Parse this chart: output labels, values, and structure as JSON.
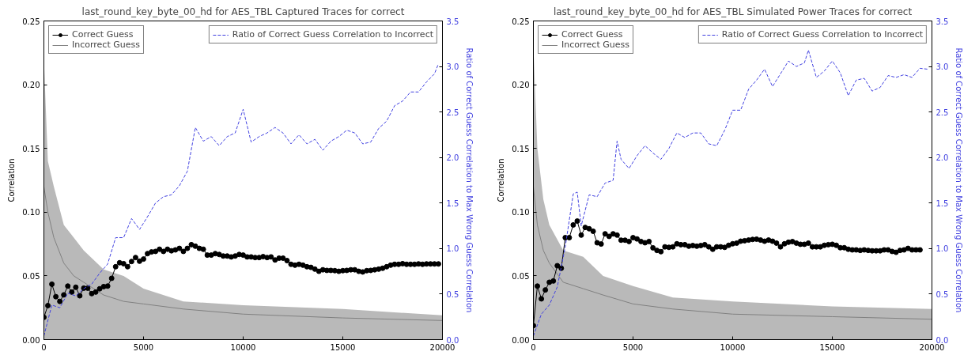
{
  "chart_data": [
    {
      "type": "line",
      "title": "last_round_key_byte_00_hd for AES_TBL Captured Traces for correct",
      "ylabel": "Correlation",
      "y2label": "Ratio of Correct Guess Correlation to Max Wrong Guess Correlation",
      "xlim": [
        0,
        20000
      ],
      "xticks": [
        0,
        5000,
        10000,
        15000,
        20000
      ],
      "ylim": [
        0,
        0.25
      ],
      "yticks": [
        {
          "value": 0,
          "label": "0.00"
        },
        {
          "value": 0.05,
          "label": "0.05"
        },
        {
          "value": 0.1,
          "label": "0.10"
        },
        {
          "value": 0.15,
          "label": "0.15"
        },
        {
          "value": 0.2,
          "label": "0.20"
        },
        {
          "value": 0.25,
          "label": "0.25"
        }
      ],
      "y2lim": [
        0,
        3.5
      ],
      "y2ticks": [
        {
          "value": 0,
          "label": "0.0"
        },
        {
          "value": 0.5,
          "label": "0.5"
        },
        {
          "value": 1,
          "label": "1.0"
        },
        {
          "value": 1.5,
          "label": "1.5"
        },
        {
          "value": 2,
          "label": "2.0"
        },
        {
          "value": 2.5,
          "label": "2.5"
        },
        {
          "value": 3,
          "label": "3.0"
        },
        {
          "value": 3.5,
          "label": "3.5"
        }
      ],
      "grid": false,
      "legend": "top left",
      "series": [
        {
          "name": "Correct Guess",
          "color": "#000000",
          "marker": "circle",
          "x": [
            0,
            200,
            400,
            600,
            800,
            1000,
            1200,
            1400,
            1600,
            1800,
            2000,
            2200,
            2400,
            2600,
            2800,
            3000,
            3200,
            3400,
            3600,
            3800,
            4000,
            4200,
            4400,
            4600,
            4800,
            5000,
            5200,
            5400,
            5600,
            5800,
            6000,
            6200,
            6400,
            6600,
            6800,
            7000,
            7200,
            7400,
            7600,
            7800,
            8000,
            8200,
            8400,
            8600,
            8800,
            9000,
            9200,
            9400,
            9600,
            9800,
            10000,
            10200,
            10400,
            10600,
            10800,
            11000,
            11200,
            11400,
            11600,
            11800,
            12000,
            12200,
            12400,
            12600,
            12800,
            13000,
            13200,
            13400,
            13600,
            13800,
            14000,
            14200,
            14400,
            14600,
            14800,
            15000,
            15200,
            15400,
            15600,
            15800,
            16000,
            16200,
            16400,
            16600,
            16800,
            17000,
            17200,
            17400,
            17600,
            17800,
            18000,
            18200,
            18400,
            18600,
            18800,
            19000,
            19200,
            19400,
            19600,
            19800
          ],
          "values": [
            0.0175,
            0.0267,
            0.0435,
            0.0337,
            0.03,
            0.0351,
            0.042,
            0.0373,
            0.0411,
            0.0344,
            0.0404,
            0.0404,
            0.0361,
            0.0373,
            0.0399,
            0.0416,
            0.042,
            0.0481,
            0.0572,
            0.0603,
            0.0596,
            0.0572,
            0.0613,
            0.0644,
            0.0615,
            0.0632,
            0.0675,
            0.0688,
            0.0692,
            0.0709,
            0.0692,
            0.0709,
            0.0697,
            0.0704,
            0.0716,
            0.0692,
            0.0716,
            0.0745,
            0.0733,
            0.0716,
            0.0709,
            0.0663,
            0.0663,
            0.0675,
            0.0668,
            0.0656,
            0.0656,
            0.0649,
            0.0656,
            0.0668,
            0.0663,
            0.0649,
            0.0649,
            0.0644,
            0.0644,
            0.0651,
            0.0644,
            0.0649,
            0.0625,
            0.0639,
            0.0639,
            0.062,
            0.0591,
            0.0584,
            0.0591,
            0.0584,
            0.0572,
            0.0567,
            0.0553,
            0.0536,
            0.0548,
            0.0543,
            0.0543,
            0.0541,
            0.0536,
            0.0541,
            0.0543,
            0.0548,
            0.0548,
            0.0536,
            0.0531,
            0.0541,
            0.0543,
            0.0548,
            0.0553,
            0.056,
            0.0572,
            0.0584,
            0.0591,
            0.0591,
            0.0596,
            0.0591,
            0.0591,
            0.0591,
            0.0594,
            0.0591,
            0.0594,
            0.0594,
            0.0594,
            0.0594
          ]
        },
        {
          "name": "Incorrect Guess",
          "color": "#808080",
          "x": [
            0,
            200,
            500,
            1000,
            1500,
            2000,
            3000,
            4000,
            5000,
            7000,
            10000,
            15000,
            20000
          ],
          "values": [
            0.12,
            0.1,
            0.08,
            0.06,
            0.05,
            0.045,
            0.035,
            0.03,
            0.028,
            0.024,
            0.02,
            0.017,
            0.015
          ],
          "lower": [
            0,
            0,
            0,
            0,
            0,
            0,
            0,
            0,
            0,
            0,
            0,
            0,
            0
          ],
          "upper": [
            0.22,
            0.14,
            0.12,
            0.09,
            0.08,
            0.07,
            0.055,
            0.05,
            0.04,
            0.03,
            0.027,
            0.024,
            0.019
          ],
          "marker": "none"
        },
        {
          "name": "Ratio of Correct Guess Correlation to Incorrect",
          "color": "#4040e0",
          "axis": "y2",
          "line_style": "dashed",
          "marker": "none",
          "x": [
            0,
            400,
            800,
            1200,
            1600,
            2000,
            2400,
            2800,
            3200,
            3600,
            4000,
            4400,
            4800,
            5200,
            5600,
            6000,
            6400,
            6800,
            7200,
            7600,
            8000,
            8400,
            8800,
            9200,
            9600,
            10000,
            10400,
            10800,
            11200,
            11600,
            12000,
            12400,
            12800,
            13200,
            13600,
            14000,
            14400,
            14800,
            15200,
            15600,
            16000,
            16400,
            16800,
            17200,
            17600,
            18000,
            18400,
            18800,
            19200,
            19600,
            19800
          ],
          "values": [
            0.04,
            0.38,
            0.35,
            0.51,
            0.48,
            0.56,
            0.61,
            0.73,
            0.83,
            1.12,
            1.12,
            1.33,
            1.21,
            1.35,
            1.5,
            1.57,
            1.59,
            1.69,
            1.85,
            2.33,
            2.18,
            2.23,
            2.13,
            2.23,
            2.27,
            2.53,
            2.17,
            2.23,
            2.27,
            2.33,
            2.27,
            2.15,
            2.25,
            2.15,
            2.2,
            2.08,
            2.18,
            2.23,
            2.3,
            2.27,
            2.15,
            2.17,
            2.32,
            2.4,
            2.57,
            2.62,
            2.72,
            2.72,
            2.83,
            2.92,
            3.03
          ]
        }
      ]
    },
    {
      "type": "line",
      "title": "last_round_key_byte_00_hd for AES_TBL Simulated Power Traces for correct",
      "ylabel": "Correlation",
      "y2label": "Ratio of Correct Guess Correlation to Max Wrong Guess Correlation",
      "xlim": [
        0,
        20000
      ],
      "xticks": [
        0,
        5000,
        10000,
        15000,
        20000
      ],
      "ylim": [
        0,
        0.25
      ],
      "yticks": [
        {
          "value": 0,
          "label": "0.00"
        },
        {
          "value": 0.05,
          "label": "0.05"
        },
        {
          "value": 0.1,
          "label": "0.10"
        },
        {
          "value": 0.15,
          "label": "0.15"
        },
        {
          "value": 0.2,
          "label": "0.20"
        },
        {
          "value": 0.25,
          "label": "0.25"
        }
      ],
      "y2lim": [
        0,
        3.5
      ],
      "y2ticks": [
        {
          "value": 0,
          "label": "0.0"
        },
        {
          "value": 0.5,
          "label": "0.5"
        },
        {
          "value": 1,
          "label": "1.0"
        },
        {
          "value": 1.5,
          "label": "1.5"
        },
        {
          "value": 2,
          "label": "2.0"
        },
        {
          "value": 2.5,
          "label": "2.5"
        },
        {
          "value": 3,
          "label": "3.0"
        },
        {
          "value": 3.5,
          "label": "3.5"
        }
      ],
      "grid": false,
      "legend": "top left",
      "series": [
        {
          "name": "Correct Guess",
          "color": "#000000",
          "marker": "circle",
          "x": [
            0,
            200,
            400,
            600,
            800,
            1000,
            1200,
            1400,
            1600,
            1800,
            2000,
            2200,
            2400,
            2600,
            2800,
            3000,
            3200,
            3400,
            3600,
            3800,
            4000,
            4200,
            4400,
            4600,
            4800,
            5000,
            5200,
            5400,
            5600,
            5800,
            6000,
            6200,
            6400,
            6600,
            6800,
            7000,
            7200,
            7400,
            7600,
            7800,
            8000,
            8200,
            8400,
            8600,
            8800,
            9000,
            9200,
            9400,
            9600,
            9800,
            10000,
            10200,
            10400,
            10600,
            10800,
            11000,
            11200,
            11400,
            11600,
            11800,
            12000,
            12200,
            12400,
            12600,
            12800,
            13000,
            13200,
            13400,
            13600,
            13800,
            14000,
            14200,
            14400,
            14600,
            14800,
            15000,
            15200,
            15400,
            15600,
            15800,
            16000,
            16200,
            16400,
            16600,
            16800,
            17000,
            17200,
            17400,
            17600,
            17800,
            18000,
            18200,
            18400,
            18600,
            18800,
            19000,
            19200,
            19400
          ],
          "values": [
            0.011,
            0.042,
            0.032,
            0.039,
            0.045,
            0.046,
            0.058,
            0.056,
            0.08,
            0.08,
            0.09,
            0.093,
            0.082,
            0.088,
            0.087,
            0.085,
            0.076,
            0.075,
            0.083,
            0.081,
            0.083,
            0.082,
            0.078,
            0.078,
            0.077,
            0.08,
            0.079,
            0.077,
            0.076,
            0.077,
            0.072,
            0.07,
            0.069,
            0.0728,
            0.0724,
            0.0728,
            0.0752,
            0.0745,
            0.0745,
            0.0733,
            0.0738,
            0.0733,
            0.0738,
            0.0745,
            0.0728,
            0.0709,
            0.0728,
            0.0728,
            0.0724,
            0.074,
            0.0752,
            0.0757,
            0.0772,
            0.0776,
            0.0781,
            0.0786,
            0.0788,
            0.0781,
            0.0772,
            0.0781,
            0.0772,
            0.0757,
            0.0728,
            0.0752,
            0.0764,
            0.0769,
            0.0757,
            0.0748,
            0.0748,
            0.0757,
            0.0728,
            0.0728,
            0.0728,
            0.074,
            0.0745,
            0.0748,
            0.074,
            0.0721,
            0.0721,
            0.0709,
            0.0704,
            0.0704,
            0.07,
            0.0704,
            0.07,
            0.0697,
            0.0697,
            0.0697,
            0.0704,
            0.0704,
            0.0692,
            0.0685,
            0.07,
            0.0704,
            0.0716,
            0.0704,
            0.0704,
            0.0704
          ]
        },
        {
          "name": "Incorrect Guess",
          "color": "#808080",
          "x": [
            0,
            200,
            500,
            800,
            1500,
            2500,
            3500,
            5000,
            7000,
            10000,
            15000,
            20000
          ],
          "values": [
            0.12,
            0.09,
            0.07,
            0.06,
            0.045,
            0.04,
            0.035,
            0.028,
            0.024,
            0.02,
            0.018,
            0.016
          ],
          "lower": [
            0,
            0,
            0,
            0,
            0,
            0,
            0,
            0,
            0,
            0,
            0,
            0
          ],
          "upper": [
            0.23,
            0.15,
            0.11,
            0.09,
            0.07,
            0.065,
            0.05,
            0.042,
            0.033,
            0.03,
            0.026,
            0.024
          ],
          "marker": "none"
        },
        {
          "name": "Ratio of Correct Guess Correlation to Incorrect",
          "color": "#4040e0",
          "axis": "y2",
          "line_style": "dashed",
          "marker": "none",
          "x": [
            0,
            400,
            800,
            1200,
            1600,
            2000,
            2200,
            2400,
            2800,
            3200,
            3600,
            4000,
            4200,
            4400,
            4800,
            5200,
            5600,
            6000,
            6400,
            6800,
            7200,
            7600,
            8000,
            8400,
            8800,
            9200,
            9600,
            10000,
            10400,
            10800,
            11200,
            11600,
            12000,
            12400,
            12800,
            13200,
            13600,
            13800,
            14200,
            14600,
            15000,
            15400,
            15800,
            16200,
            16600,
            17000,
            17400,
            17800,
            18200,
            18600,
            19000,
            19400,
            19800
          ],
          "values": [
            0.04,
            0.28,
            0.38,
            0.58,
            1.02,
            1.6,
            1.62,
            1.25,
            1.59,
            1.57,
            1.72,
            1.75,
            2.18,
            1.98,
            1.88,
            2.02,
            2.13,
            2.05,
            1.98,
            2.1,
            2.27,
            2.22,
            2.27,
            2.27,
            2.15,
            2.13,
            2.3,
            2.52,
            2.52,
            2.75,
            2.85,
            2.97,
            2.78,
            2.92,
            3.06,
            3.0,
            3.04,
            3.18,
            2.88,
            2.95,
            3.06,
            2.93,
            2.68,
            2.85,
            2.87,
            2.73,
            2.77,
            2.9,
            2.88,
            2.91,
            2.88,
            2.98,
            2.97
          ]
        }
      ]
    }
  ]
}
